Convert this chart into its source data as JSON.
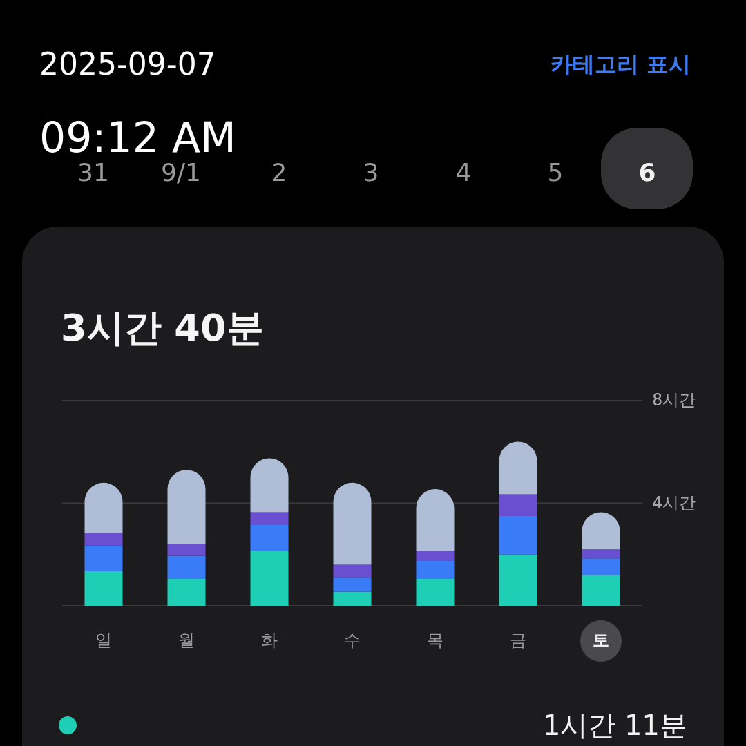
{
  "chart_data": {
    "type": "bar",
    "title": "3시간 40분",
    "categories": [
      "일",
      "월",
      "화",
      "수",
      "목",
      "금",
      "토"
    ],
    "stacked": true,
    "series": [
      {
        "color": "#1ecfb6",
        "values": [
          1.35,
          1.05,
          2.15,
          0.55,
          1.05,
          2.0,
          1.2
        ]
      },
      {
        "color": "#3a7bf7",
        "values": [
          1.0,
          0.9,
          1.0,
          0.55,
          0.7,
          1.5,
          0.65
        ]
      },
      {
        "color": "#6a4fd0",
        "values": [
          0.5,
          0.45,
          0.5,
          0.5,
          0.4,
          0.85,
          0.35
        ]
      },
      {
        "color": "#b0bdd6",
        "values": [
          1.95,
          2.9,
          2.1,
          3.2,
          2.4,
          2.05,
          1.45
        ]
      }
    ],
    "ylim": [
      0,
      8
    ],
    "yticks": [
      {
        "value": 0,
        "label": null
      },
      {
        "value": 4,
        "label": "4시간"
      },
      {
        "value": 8,
        "label": "8시간"
      }
    ],
    "grid": "y",
    "annotations": [
      "2025-09-07",
      "09:12 AM",
      "카테고리 표시",
      "31",
      "9/1",
      "2",
      "3",
      "4",
      "5",
      "6",
      "1시간 11분"
    ]
  }
}
